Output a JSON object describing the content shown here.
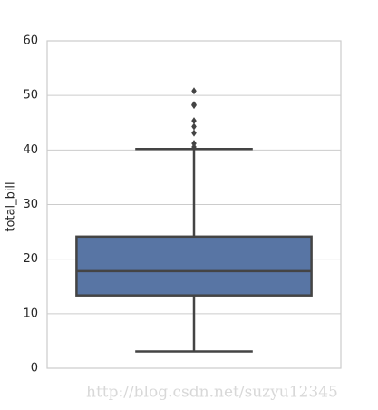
{
  "chart_data": {
    "type": "box",
    "ylabel": "total_bill",
    "ylim": [
      0,
      60
    ],
    "yticks": [
      0,
      10,
      20,
      30,
      40,
      50,
      60
    ],
    "grid": true,
    "color": "#5875a4",
    "boxes": [
      {
        "min": 3.07,
        "q1": 13.35,
        "median": 17.8,
        "q3": 24.13,
        "max": 40.17,
        "outliers": [
          40.55,
          41.19,
          43.11,
          44.3,
          45.35,
          48.17,
          48.27,
          48.33,
          50.81
        ]
      }
    ]
  },
  "watermark": "http://blog.csdn.net/suzyu12345"
}
